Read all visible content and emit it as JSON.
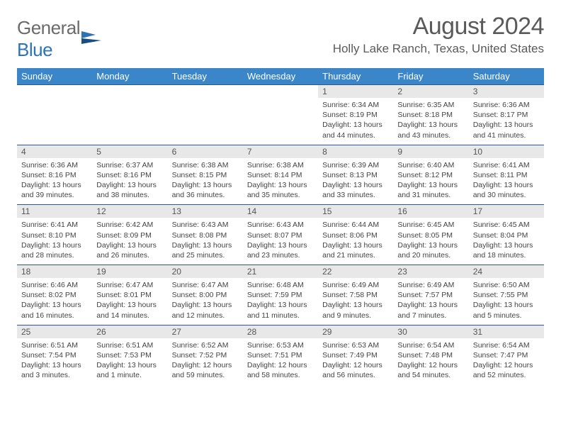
{
  "brand": {
    "word1": "General",
    "word2": "Blue"
  },
  "title": "August 2024",
  "location": "Holly Lake Ranch, Texas, United States",
  "colors": {
    "header_bg": "#3a86c8",
    "header_text": "#ffffff",
    "daynum_bg": "#e8e8e8",
    "cell_border": "#2d5a8a",
    "body_text": "#444444",
    "title_text": "#5a5a5a",
    "logo_gray": "#6b6b6b",
    "logo_blue": "#2d73b5"
  },
  "weekdays": [
    "Sunday",
    "Monday",
    "Tuesday",
    "Wednesday",
    "Thursday",
    "Friday",
    "Saturday"
  ],
  "weeks": [
    [
      null,
      null,
      null,
      null,
      {
        "n": "1",
        "sr": "6:34 AM",
        "ss": "8:19 PM",
        "dl": "13 hours and 44 minutes."
      },
      {
        "n": "2",
        "sr": "6:35 AM",
        "ss": "8:18 PM",
        "dl": "13 hours and 43 minutes."
      },
      {
        "n": "3",
        "sr": "6:36 AM",
        "ss": "8:17 PM",
        "dl": "13 hours and 41 minutes."
      }
    ],
    [
      {
        "n": "4",
        "sr": "6:36 AM",
        "ss": "8:16 PM",
        "dl": "13 hours and 39 minutes."
      },
      {
        "n": "5",
        "sr": "6:37 AM",
        "ss": "8:16 PM",
        "dl": "13 hours and 38 minutes."
      },
      {
        "n": "6",
        "sr": "6:38 AM",
        "ss": "8:15 PM",
        "dl": "13 hours and 36 minutes."
      },
      {
        "n": "7",
        "sr": "6:38 AM",
        "ss": "8:14 PM",
        "dl": "13 hours and 35 minutes."
      },
      {
        "n": "8",
        "sr": "6:39 AM",
        "ss": "8:13 PM",
        "dl": "13 hours and 33 minutes."
      },
      {
        "n": "9",
        "sr": "6:40 AM",
        "ss": "8:12 PM",
        "dl": "13 hours and 31 minutes."
      },
      {
        "n": "10",
        "sr": "6:41 AM",
        "ss": "8:11 PM",
        "dl": "13 hours and 30 minutes."
      }
    ],
    [
      {
        "n": "11",
        "sr": "6:41 AM",
        "ss": "8:10 PM",
        "dl": "13 hours and 28 minutes."
      },
      {
        "n": "12",
        "sr": "6:42 AM",
        "ss": "8:09 PM",
        "dl": "13 hours and 26 minutes."
      },
      {
        "n": "13",
        "sr": "6:43 AM",
        "ss": "8:08 PM",
        "dl": "13 hours and 25 minutes."
      },
      {
        "n": "14",
        "sr": "6:43 AM",
        "ss": "8:07 PM",
        "dl": "13 hours and 23 minutes."
      },
      {
        "n": "15",
        "sr": "6:44 AM",
        "ss": "8:06 PM",
        "dl": "13 hours and 21 minutes."
      },
      {
        "n": "16",
        "sr": "6:45 AM",
        "ss": "8:05 PM",
        "dl": "13 hours and 20 minutes."
      },
      {
        "n": "17",
        "sr": "6:45 AM",
        "ss": "8:04 PM",
        "dl": "13 hours and 18 minutes."
      }
    ],
    [
      {
        "n": "18",
        "sr": "6:46 AM",
        "ss": "8:02 PM",
        "dl": "13 hours and 16 minutes."
      },
      {
        "n": "19",
        "sr": "6:47 AM",
        "ss": "8:01 PM",
        "dl": "13 hours and 14 minutes."
      },
      {
        "n": "20",
        "sr": "6:47 AM",
        "ss": "8:00 PM",
        "dl": "13 hours and 12 minutes."
      },
      {
        "n": "21",
        "sr": "6:48 AM",
        "ss": "7:59 PM",
        "dl": "13 hours and 11 minutes."
      },
      {
        "n": "22",
        "sr": "6:49 AM",
        "ss": "7:58 PM",
        "dl": "13 hours and 9 minutes."
      },
      {
        "n": "23",
        "sr": "6:49 AM",
        "ss": "7:57 PM",
        "dl": "13 hours and 7 minutes."
      },
      {
        "n": "24",
        "sr": "6:50 AM",
        "ss": "7:55 PM",
        "dl": "13 hours and 5 minutes."
      }
    ],
    [
      {
        "n": "25",
        "sr": "6:51 AM",
        "ss": "7:54 PM",
        "dl": "13 hours and 3 minutes."
      },
      {
        "n": "26",
        "sr": "6:51 AM",
        "ss": "7:53 PM",
        "dl": "13 hours and 1 minute."
      },
      {
        "n": "27",
        "sr": "6:52 AM",
        "ss": "7:52 PM",
        "dl": "12 hours and 59 minutes."
      },
      {
        "n": "28",
        "sr": "6:53 AM",
        "ss": "7:51 PM",
        "dl": "12 hours and 58 minutes."
      },
      {
        "n": "29",
        "sr": "6:53 AM",
        "ss": "7:49 PM",
        "dl": "12 hours and 56 minutes."
      },
      {
        "n": "30",
        "sr": "6:54 AM",
        "ss": "7:48 PM",
        "dl": "12 hours and 54 minutes."
      },
      {
        "n": "31",
        "sr": "6:54 AM",
        "ss": "7:47 PM",
        "dl": "12 hours and 52 minutes."
      }
    ]
  ],
  "labels": {
    "sunrise": "Sunrise:",
    "sunset": "Sunset:",
    "daylight": "Daylight:"
  }
}
